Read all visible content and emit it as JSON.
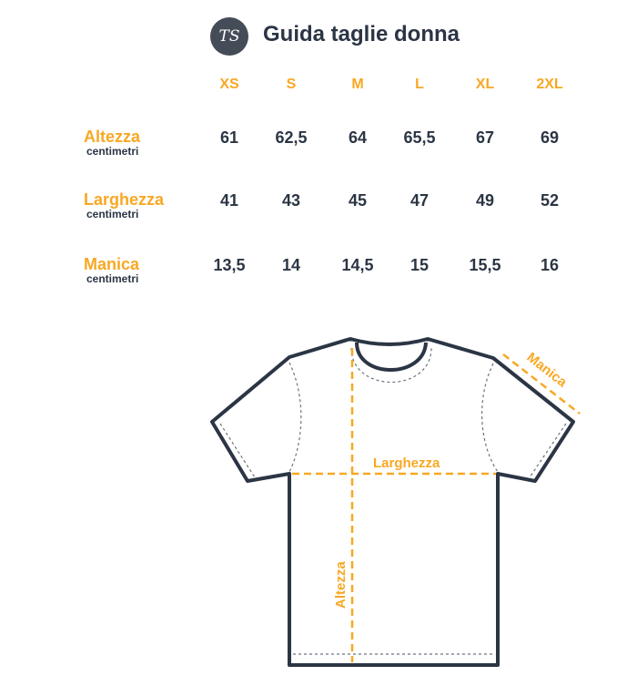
{
  "header": {
    "logo_text": "TS",
    "title": "Guida taglie donna"
  },
  "sizes": [
    "XS",
    "S",
    "M",
    "L",
    "XL",
    "2XL"
  ],
  "rows": [
    {
      "label": "Altezza",
      "unit": "centimetri",
      "values": [
        "61",
        "62,5",
        "64",
        "65,5",
        "67",
        "69"
      ]
    },
    {
      "label": "Larghezza",
      "unit": "centimetri",
      "values": [
        "41",
        "43",
        "45",
        "47",
        "49",
        "52"
      ]
    },
    {
      "label": "Manica",
      "unit": "centimetri",
      "values": [
        "13,5",
        "14",
        "14,5",
        "15",
        "15,5",
        "16"
      ]
    }
  ],
  "diagram": {
    "width_label": "Larghezza",
    "height_label": "Altezza",
    "sleeve_label": "Manica"
  },
  "colors": {
    "accent": "#f7a823",
    "text": "#2b3544",
    "logo_bg": "#444c58"
  }
}
